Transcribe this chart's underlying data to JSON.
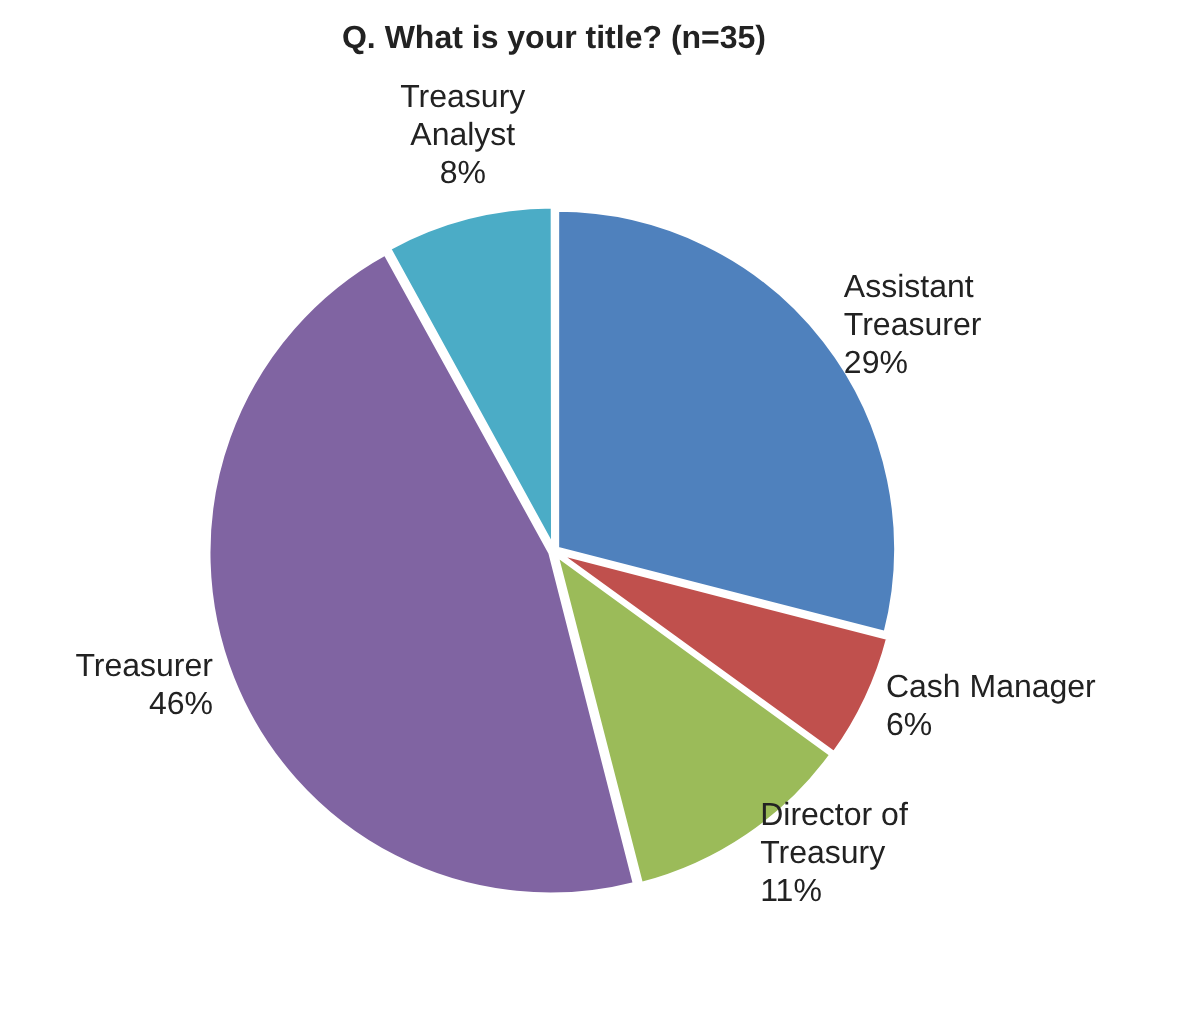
{
  "chart_data": {
    "type": "pie",
    "title": "Q. What is your title? (n=35)",
    "categories": [
      "Assistant Treasurer",
      "Cash Manager",
      "Director of Treasury",
      "Treasurer",
      "Treasury Analyst"
    ],
    "values": [
      29,
      6,
      11,
      46,
      8
    ],
    "colors": [
      "#4f81bd",
      "#c0504d",
      "#9bbb59",
      "#8064a2",
      "#4bacc6"
    ],
    "value_labels": [
      "29%",
      "6%",
      "11%",
      "46%",
      "8%"
    ],
    "legend": false
  }
}
